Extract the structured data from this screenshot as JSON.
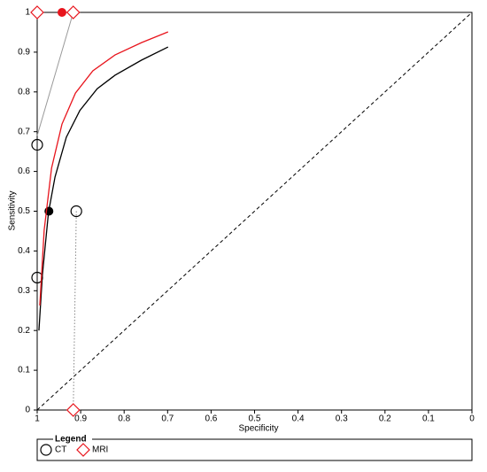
{
  "chart_data": {
    "type": "sroc",
    "xlabel": "Specificity",
    "ylabel": "Sensitivity",
    "xlim": [
      1,
      0
    ],
    "ylim": [
      0,
      1
    ],
    "xticks": [
      1,
      0.9,
      0.8,
      0.7,
      0.6,
      0.5,
      0.4,
      0.3,
      0.2,
      0.1,
      0
    ],
    "yticks": [
      0,
      0.1,
      0.2,
      0.3,
      0.4,
      0.5,
      0.6,
      0.7,
      0.8,
      0.9,
      1
    ],
    "diagonal": true,
    "legend_title": "Legend",
    "series": [
      {
        "name": "CT",
        "color": "#000000",
        "marker": "circle",
        "x": [
          1.0,
          1.0,
          0.91
        ],
        "y": [
          0.667,
          0.333,
          0.5
        ],
        "summary": {
          "x": 0.973,
          "y": 0.5
        },
        "curve": {
          "x": [
            0.996,
            0.988,
            0.974,
            0.959,
            0.933,
            0.902,
            0.862,
            0.821,
            0.76,
            0.699
          ],
          "y": [
            0.2,
            0.34,
            0.497,
            0.586,
            0.686,
            0.753,
            0.808,
            0.842,
            0.88,
            0.913
          ]
        },
        "ci": {
          "x": [
            0.91,
            0.917
          ],
          "y": [
            0.5,
            0.0
          ],
          "color": "#888888",
          "dashed": true
        }
      },
      {
        "name": "MRI",
        "color": "#e8141c",
        "marker": "diamond",
        "x": [
          1.0,
          0.917,
          0.917
        ],
        "y": [
          1.0,
          1.0,
          0.0
        ],
        "summary": {
          "x": 0.943,
          "y": 1.0
        },
        "curve": {
          "x": [
            0.994,
            0.984,
            0.967,
            0.943,
            0.912,
            0.872,
            0.821,
            0.76,
            0.699
          ],
          "y": [
            0.263,
            0.452,
            0.608,
            0.719,
            0.797,
            0.853,
            0.893,
            0.924,
            0.951
          ]
        },
        "ci": {
          "x": [
            0.917,
            1.0
          ],
          "y": [
            1.0,
            0.69
          ],
          "color": "#999999",
          "dashed": false
        }
      }
    ]
  }
}
